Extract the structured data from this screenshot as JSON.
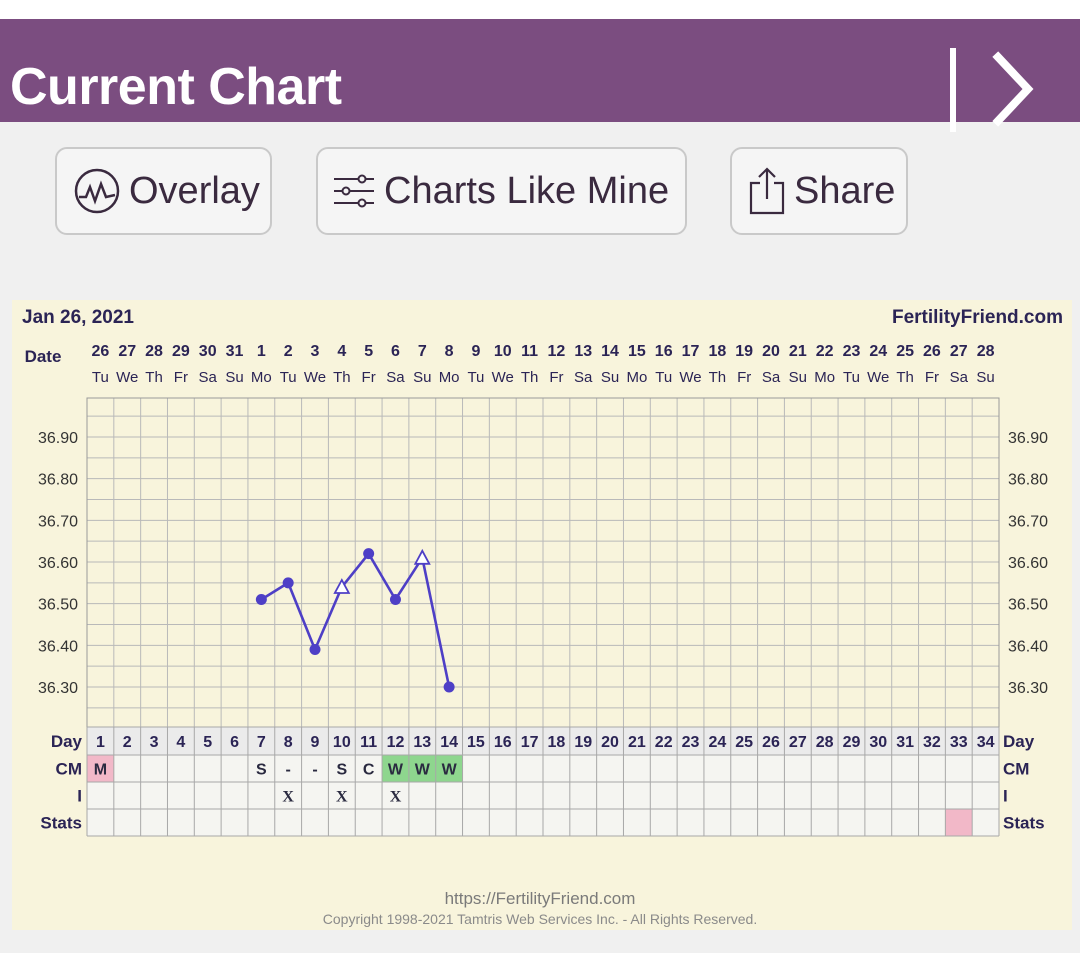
{
  "header": {
    "title": "Current Chart"
  },
  "toolbar": {
    "overlay_label": "Overlay",
    "charts_like_mine_label": "Charts Like Mine",
    "share_label": "Share"
  },
  "chart": {
    "date_text": "Jan 26, 2021",
    "brand": "FertilityFriend.com",
    "row_labels": {
      "date": "Date",
      "day": "Day",
      "cm": "CM",
      "i": "I",
      "stats": "Stats"
    },
    "dates": [
      "26",
      "27",
      "28",
      "29",
      "30",
      "31",
      "1",
      "2",
      "3",
      "4",
      "5",
      "6",
      "7",
      "8",
      "9",
      "10",
      "11",
      "12",
      "13",
      "14",
      "15",
      "16",
      "17",
      "18",
      "19",
      "20",
      "21",
      "22",
      "23",
      "24",
      "25",
      "26",
      "27",
      "28"
    ],
    "weekdays": [
      "Tu",
      "We",
      "Th",
      "Fr",
      "Sa",
      "Su",
      "Mo",
      "Tu",
      "We",
      "Th",
      "Fr",
      "Sa",
      "Su",
      "Mo",
      "Tu",
      "We",
      "Th",
      "Fr",
      "Sa",
      "Su",
      "Mo",
      "Tu",
      "We",
      "Th",
      "Fr",
      "Sa",
      "Su",
      "Mo",
      "Tu",
      "We",
      "Th",
      "Fr",
      "Sa",
      "Su"
    ],
    "cycle_days": [
      "1",
      "2",
      "3",
      "4",
      "5",
      "6",
      "7",
      "8",
      "9",
      "10",
      "11",
      "12",
      "13",
      "14",
      "15",
      "16",
      "17",
      "18",
      "19",
      "20",
      "21",
      "22",
      "23",
      "24",
      "25",
      "26",
      "27",
      "28",
      "29",
      "30",
      "31",
      "32",
      "33",
      "34"
    ],
    "cm": [
      "M",
      "",
      "",
      "",
      "",
      "",
      "S",
      "-",
      "-",
      "S",
      "C",
      "W",
      "W",
      "W",
      "",
      "",
      "",
      "",
      "",
      "",
      "",
      "",
      "",
      "",
      "",
      "",
      "",
      "",
      "",
      "",
      "",
      "",
      "",
      ""
    ],
    "cm_colors": {
      "M": "#f2b8c8",
      "W": "#8ed68e"
    },
    "intercourse": [
      "",
      "",
      "",
      "",
      "",
      "",
      "",
      "X",
      "",
      "X",
      "",
      "X",
      "",
      "",
      "",
      "",
      "",
      "",
      "",
      "",
      "",
      "",
      "",
      "",
      "",
      "",
      "",
      "",
      "",
      "",
      "",
      "",
      "",
      ""
    ],
    "stats_highlight": [
      33
    ],
    "stats_color": "#f2b8c8",
    "line_color": "#4e3fc6"
  },
  "chart_data": {
    "type": "line",
    "title": "",
    "xlabel": "Day",
    "ylabel": "",
    "ylim": [
      36.2,
      37.0
    ],
    "yticks": [
      36.3,
      36.4,
      36.5,
      36.6,
      36.7,
      36.8,
      36.9
    ],
    "ytick_labels": [
      "36.30",
      "36.40",
      "36.50",
      "36.60",
      "36.70",
      "36.80",
      "36.90"
    ],
    "points": [
      {
        "day": 7,
        "temp": 36.51,
        "marker": "dot"
      },
      {
        "day": 8,
        "temp": 36.55,
        "marker": "dot"
      },
      {
        "day": 9,
        "temp": 36.39,
        "marker": "dot"
      },
      {
        "day": 10,
        "temp": 36.54,
        "marker": "triangle"
      },
      {
        "day": 11,
        "temp": 36.62,
        "marker": "dot"
      },
      {
        "day": 12,
        "temp": 36.51,
        "marker": "dot"
      },
      {
        "day": 13,
        "temp": 36.61,
        "marker": "triangle"
      },
      {
        "day": 14,
        "temp": 36.3,
        "marker": "dot"
      }
    ],
    "grid": true
  },
  "footer": {
    "url": "https://FertilityFriend.com",
    "copyright": "Copyright 1998-2021 Tamtris Web Services Inc. - All Rights Reserved."
  }
}
